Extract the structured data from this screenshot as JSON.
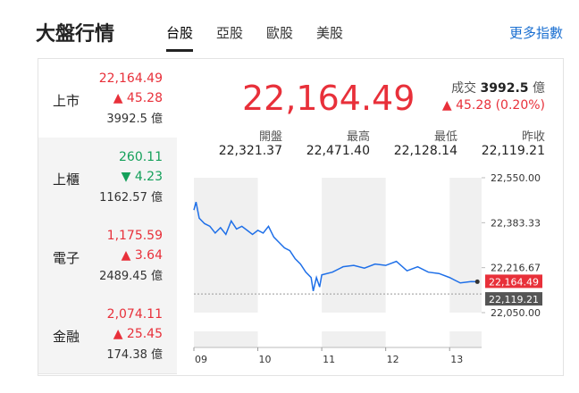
{
  "header": {
    "title": "大盤行情",
    "tabs": [
      "台股",
      "亞股",
      "歐股",
      "美股"
    ],
    "selected_tab": 0,
    "more": "更多指數"
  },
  "markets": [
    {
      "name": "上市",
      "price": "22,164.49",
      "change": "45.28",
      "volume": "3992.5 億",
      "direction": "up"
    },
    {
      "name": "上櫃",
      "price": "260.11",
      "change": "4.23",
      "volume": "1162.57 億",
      "direction": "down"
    },
    {
      "name": "電子",
      "price": "1,175.59",
      "change": "3.64",
      "volume": "2489.45 億",
      "direction": "up"
    },
    {
      "name": "金融",
      "price": "2,074.11",
      "change": "25.45",
      "volume": "174.38 億",
      "direction": "up"
    }
  ],
  "selected_market": 0,
  "quote": {
    "price": "22,164.49",
    "volume_label": "成交",
    "volume": "3992.5",
    "volume_unit": "億",
    "change": "45.28 (0.20%)",
    "direction": "up",
    "stats": [
      {
        "label": "開盤",
        "value": "22,321.37"
      },
      {
        "label": "最高",
        "value": "22,471.40"
      },
      {
        "label": "最低",
        "value": "22,128.14"
      },
      {
        "label": "昨收",
        "value": "22,119.21"
      }
    ]
  },
  "chart": {
    "type": "line",
    "color": "#1e6fe8",
    "x": [
      0,
      2,
      5,
      10,
      15,
      20,
      25,
      30,
      35,
      40,
      45,
      50,
      55,
      60,
      65,
      70,
      75,
      80,
      85,
      90,
      95,
      100,
      105,
      110,
      112,
      115,
      118,
      120,
      130,
      140,
      150,
      160,
      170,
      180,
      190,
      200,
      210,
      220,
      230,
      240,
      250,
      260,
      266
    ],
    "values": [
      22430,
      22460,
      22400,
      22380,
      22370,
      22345,
      22365,
      22340,
      22390,
      22360,
      22370,
      22355,
      22340,
      22355,
      22345,
      22370,
      22330,
      22310,
      22290,
      22280,
      22250,
      22230,
      22200,
      22180,
      22130,
      22180,
      22145,
      22190,
      22200,
      22220,
      22225,
      22215,
      22230,
      22225,
      22240,
      22205,
      22220,
      22200,
      22195,
      22180,
      22160,
      22165,
      22164.49
    ],
    "xlim": [
      0,
      270
    ],
    "xticks": [
      {
        "value": 0,
        "label": "09"
      },
      {
        "value": 60,
        "label": "10"
      },
      {
        "value": 120,
        "label": "11"
      },
      {
        "value": 180,
        "label": "12"
      },
      {
        "value": 240,
        "label": "13"
      }
    ],
    "ylim": [
      22050,
      22550
    ],
    "yticks": [
      {
        "value": 22550,
        "label": "22,550.00"
      },
      {
        "value": 22383.33,
        "label": "22,383.33"
      },
      {
        "value": 22216.67,
        "label": "22,216.67"
      },
      {
        "value": 22050,
        "label": "22,050.00"
      }
    ],
    "last": {
      "value": 22164.49,
      "label": "22,164.49"
    },
    "previous_close": {
      "value": 22119.21,
      "label": "22,119.21"
    }
  }
}
